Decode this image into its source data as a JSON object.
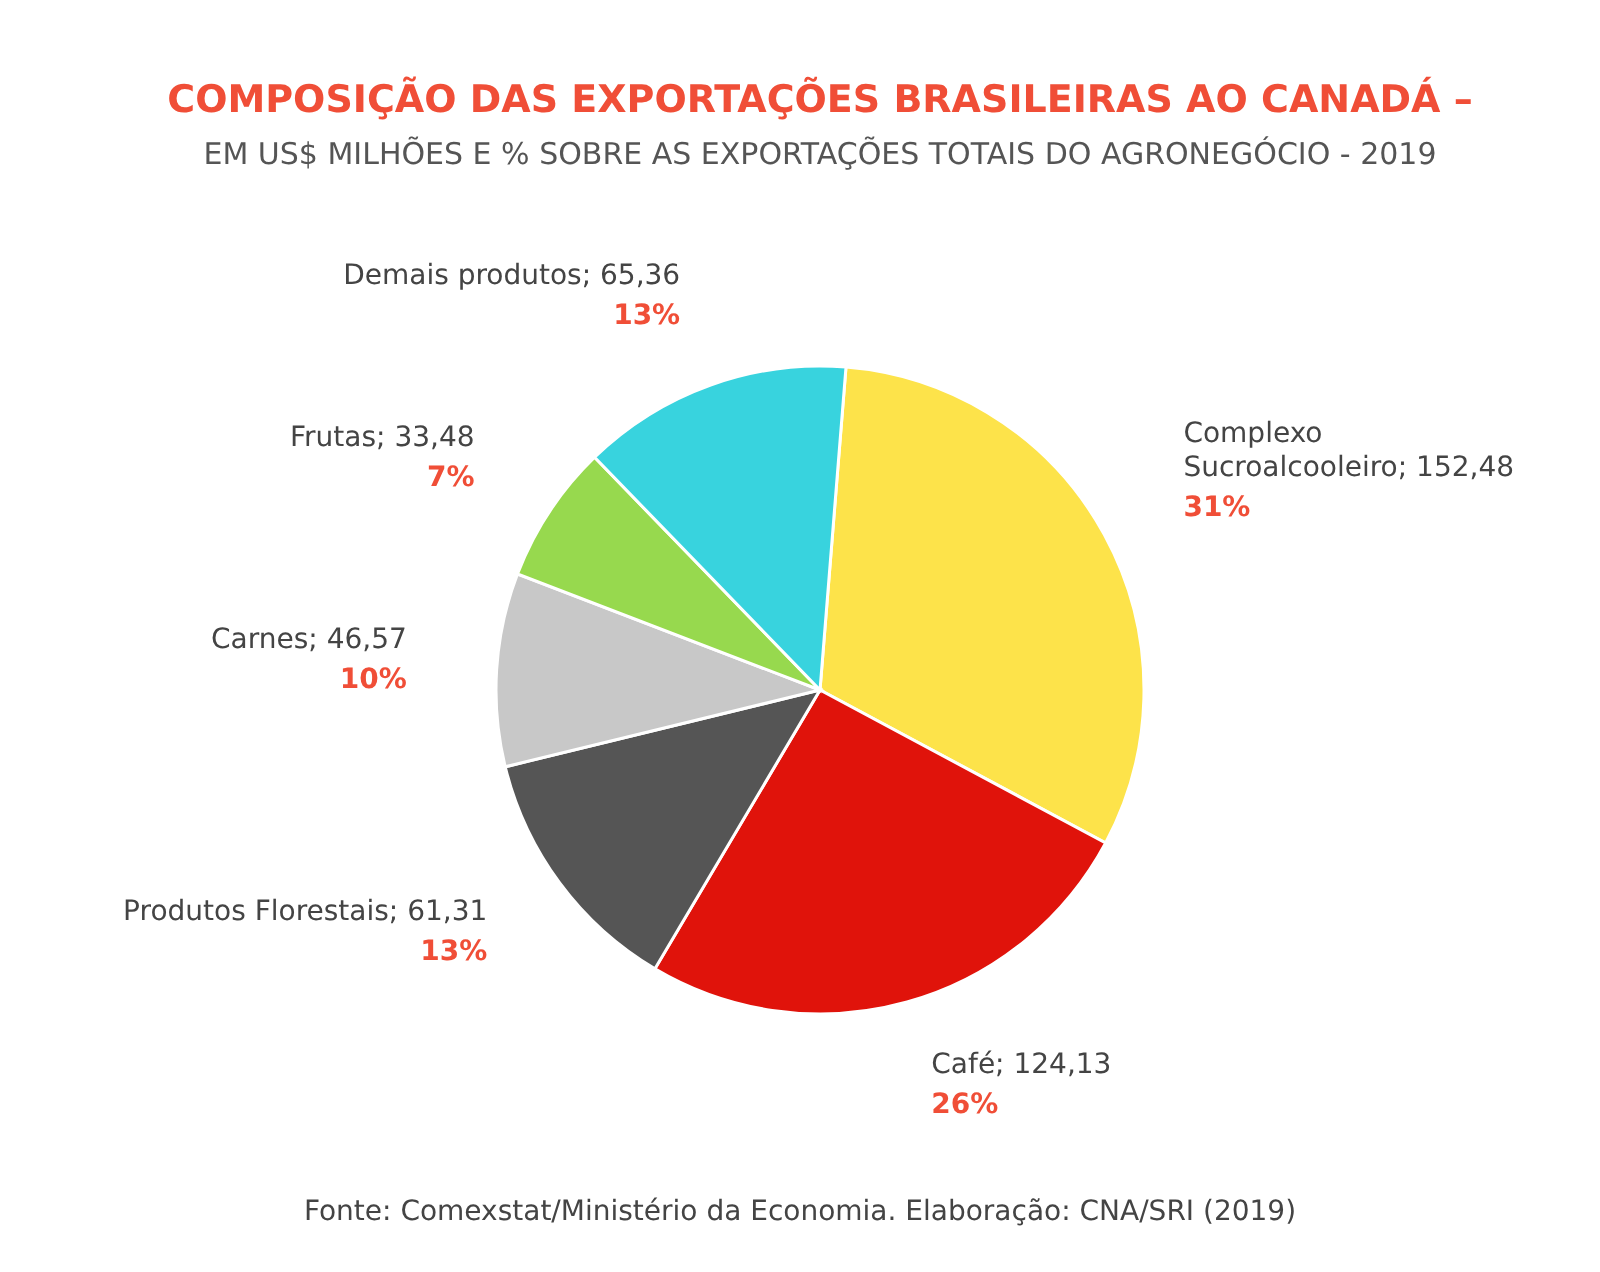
{
  "chart_data": {
    "type": "pie",
    "title": "COMPOSIÇÃO DAS EXPORTAÇÕES BRASILEIRAS AO CANADÁ –",
    "subtitle": "EM US$ MILHÕES E % SOBRE AS EXPORTAÇÕES TOTAIS DO AGRONEGÓCIO - 2019",
    "categories": [
      "Complexo Sucroalcooleiro",
      "Café",
      "Produtos Florestais",
      "Carnes",
      "Frutas",
      "Demais produtos"
    ],
    "values": [
      152.48,
      124.13,
      61.31,
      46.57,
      33.48,
      65.36
    ],
    "value_labels": [
      "152,48",
      "124,13",
      "61,31",
      "46,57",
      "33,48",
      "65,36"
    ],
    "colors": [
      "#fde34a",
      "#e0130b",
      "#555555",
      "#c8c8c8",
      "#97d94e",
      "#38d3de"
    ],
    "annotations": [
      {
        "text": "31%",
        "x": "Complexo Sucroalcooleiro"
      },
      {
        "text": "26%",
        "x": "Café"
      },
      {
        "text": "13%",
        "x": "Produtos Florestais"
      },
      {
        "text": "10%",
        "x": "Carnes"
      },
      {
        "text": "7%",
        "x": "Frutas"
      },
      {
        "text": "13%",
        "x": "Demais produtos"
      },
      "Fonte: Comexstat/Ministério da Economia. Elaboração: CNA/SRI (2019)"
    ],
    "legend": false
  }
}
